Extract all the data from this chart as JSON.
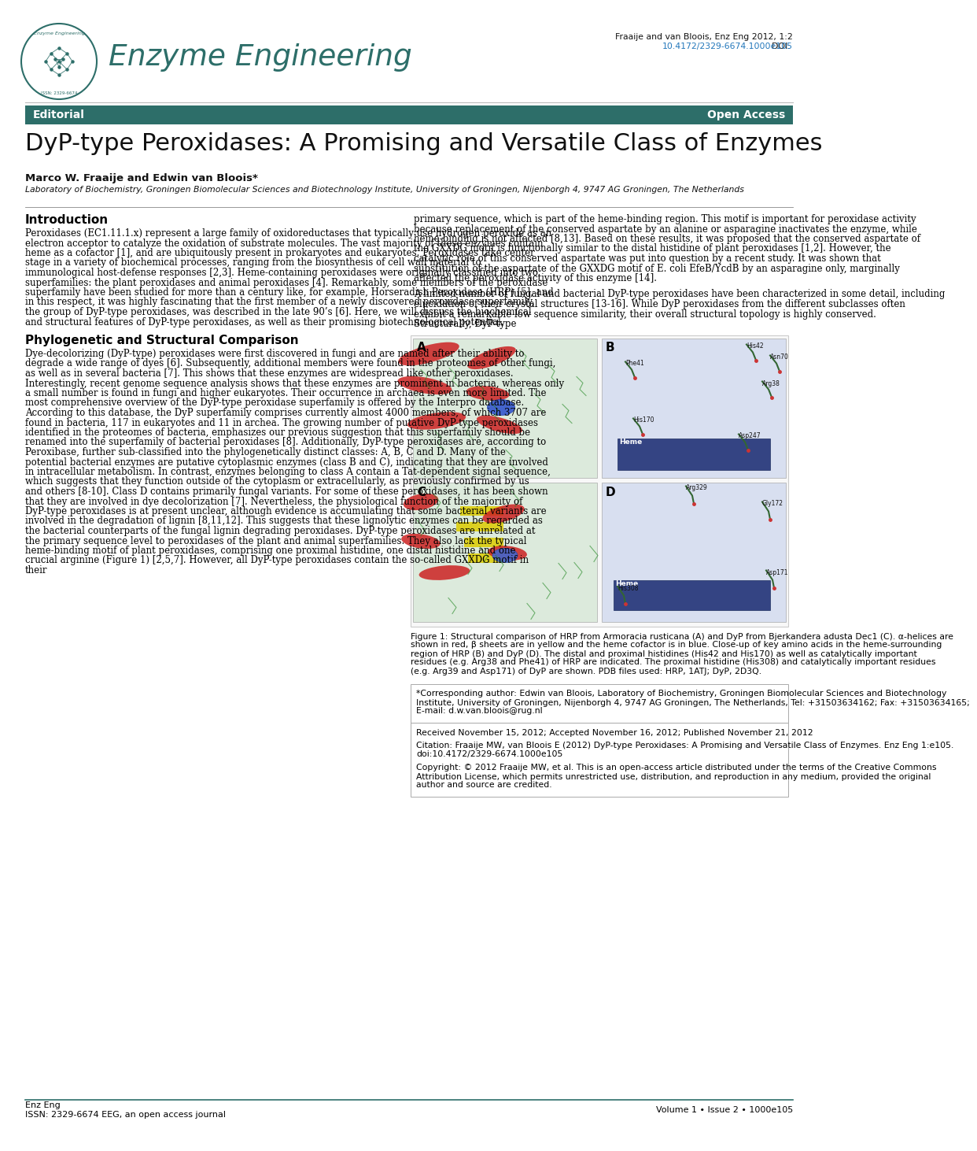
{
  "journal_name": "Enzyme Engineering",
  "issn_logo": "ISSN: 2329-6674",
  "header_citation": "Fraaije and van Bloois, Enz Eng 2012, 1:2",
  "header_doi_prefix": "DOI: ",
  "header_doi_link": "10.4172/2329-6674.1000e105",
  "banner_left": "Editorial",
  "banner_right": "Open Access",
  "banner_color": "#2d6e69",
  "title": "DyP-type Peroxidases: A Promising and Versatile Class of Enzymes",
  "authors": "Marco W. Fraaije and Edwin van Bloois*",
  "affiliation": "Laboratory of Biochemistry, Groningen Biomolecular Sciences and Biotechnology Institute, University of Groningen, Nijenborgh 4, 9747 AG Groningen, The Netherlands",
  "intro_heading": "Introduction",
  "intro_left_para": "    Peroxidases (EC1.11.1.x) represent a large family of oxidoreductases that typically use hydrogen peroxide as an electron acceptor to catalyze the oxidation of substrate molecules. The vast majority of these enzymes contain heme as a cofactor [1], and are ubiquitously present in prokaryotes and eukaryotes. Peroxidases take center stage in a variety of biochemical processes, ranging from the biosynthesis of cell wall material to immunological host-defense responses [2,3]. Heme-containing peroxidases were originally classified into two superfamilies: the plant peroxidases and animal peroxidases [4]. Remarkably, some members of the peroxidase superfamily have been studied for more than a century like, for example, Horseradish Peroxidase (HRP) [5], and in this respect, it was highly fascinating that the first member of a newly discovered peroxidase superfamily, the group of DyP-type peroxidases, was described in the late 90’s [6]. Here, we will discuss the biochemical and structural features of DyP-type peroxidases, as well as their promising biotechnological potential.",
  "intro_right_para1": "primary sequence, which is part of the heme-binding region. This motif is important for peroxidase activity because replacement of the conserved aspartate by an alanine or asparagine inactivates the enzyme, while heme-binding is not affected [8,13]. Based on these results, it was proposed that the conserved aspartate of the GXXDG motif is functionally similar to the distal histidine of plant peroxidases [1,2]. However, the catalytic role of this conserved aspartate was put into question by a recent study. It was shown that substitution of the aspartate of the GXXDG motif of E. coli EfeB/YcdB by an asparagine only, marginally affected the peroxidase activity of this enzyme [14].",
  "intro_right_para2": "    A limited number of fungal and bacterial DyP-type peroxidases have been characterized in some detail, including elucidation of their crystal structures [13-16]. While DyP peroxidases from the different subclasses often exhibit a remarkable low sequence similarity, their overall structural topology is highly conserved. Structurally, DyP-type",
  "phylo_heading": "Phylogenetic and Structural Comparison",
  "phylo_left_para": "    Dye-decolorizing (DyP-type) peroxidases were first discovered in fungi and are named after their ability to degrade a wide range of dyes [6]. Subsequently, additional members were found in the proteomes of other fungi, as well as in several bacteria [7]. This shows that these enzymes are widespread like other peroxidases. Interestingly, recent genome sequence analysis shows that these enzymes are prominent in bacteria, whereas only a small number is found in fungi and higher eukaryotes. Their occurrence in archaea is even more limited. The most comprehensive overview of the DyP-type peroxidase superfamily is offered by the Interpro database. According to this database, the DyP superfamily comprises currently almost 4000 members, of which 3707 are found in bacteria, 117 in eukaryotes and 11 in archea. The growing number of putative DyP-type peroxidases identified in the proteomes of bacteria, emphasizes our previous suggestion that this superfamily should be renamed into the superfamily of bacterial peroxidases [8]. Additionally, DyP-type peroxidases are, according to Peroxibase, further sub-classified into the phylogenetically distinct classes: A, B, C and D. Many of the potential bacterial enzymes are putative cytoplasmic enzymes (class B and C), indicating that they are involved in intracellular metabolism. In contrast, enzymes belonging to class A contain a Tat-dependent signal sequence, which suggests that they function outside of the cytoplasm or extracellularly, as previously confirmed by us and others [8-10]. Class D contains primarily fungal variants. For some of these peroxidases, it has been shown that they are involved in dye decolorization [7]. Nevertheless, the physiological function of the majority of DyP-type peroxidases is at present unclear, although evidence is accumulating that some bacterial variants are involved in the degradation of lignin [8,11,12]. This suggests that these lignolytic enzymes can be regarded as the bacterial counterparts of the fungal lignin degrading peroxidases. DyP-type peroxidases are unrelated at the primary sequence level to peroxidases of the plant and animal superfamilies. They also lack the typical heme-binding motif of plant peroxidases, comprising one proximal histidine, one distal histidine and one crucial arginine (Figure 1) [2,5,7]. However, all DyP-type peroxidases contain the so-called GXXDG motif in their",
  "fig_caption_bold": "Figure 1:",
  "fig_caption_rest": "  Structural comparison of HRP from Armoracia rusticana (A) and DyP from Bjerkandera adusta Dec1 (C). α-helices are shown in red, β sheets are in yellow and the heme cofactor is in blue. Close-up of key amino acids in the heme-surrounding region of HRP (B) and DyP (D). The distal and proximal histidines (His42 and His170) as well as catalytically important residues (e.g. Arg38 and Phe41) of HRP are indicated. The proximal histidine (His308) and catalytically important residues (e.g. Arg39 and Asp171) of DyP are shown. PDB files used: HRP, 1ATJ; DyP, 2D3Q.",
  "corr_label": "*Corresponding author:",
  "corr_text": " Edwin van Bloois, Laboratory of Biochemistry, Groningen Biomolecular Sciences and Biotechnology Institute, University of Groningen, Nijenborgh 4, 9747 AG Groningen, The Netherlands, Tel: +31503634162; Fax: +31503634165; E-mail: d.w.van.bloois@rug.nl",
  "recv_text": "Received November 15, 2012; Accepted November 16, 2012; Published\nNovember 21, 2012",
  "cite_label": "Citation:",
  "cite_text": " Fraaije MW, van Bloois E (2012) DyP-type Peroxidases: A Promising and Versatile Class of Enzymes. Enz Eng 1:e105. doi:10.4172/2329-6674.1000e105",
  "copy_label": "Copyright:",
  "copy_text": " © 2012 Fraaije MW, et al. This is an open-access article distributed under the terms of the Creative Commons Attribution License, which permits unrestricted use, distribution, and reproduction in any medium, provided the original author and source are credited.",
  "footer_l1": "Enz Eng",
  "footer_l2": "ISSN: 2329-6674 EEG, an open access journal",
  "footer_r": "Volume 1 • Issue 2 • 1000e105",
  "teal": "#2d6e69",
  "link": "#2277bb",
  "white": "#ffffff",
  "black": "#111111",
  "gray_line": "#aaaaaa",
  "fig_bg": "#f8f8f8"
}
